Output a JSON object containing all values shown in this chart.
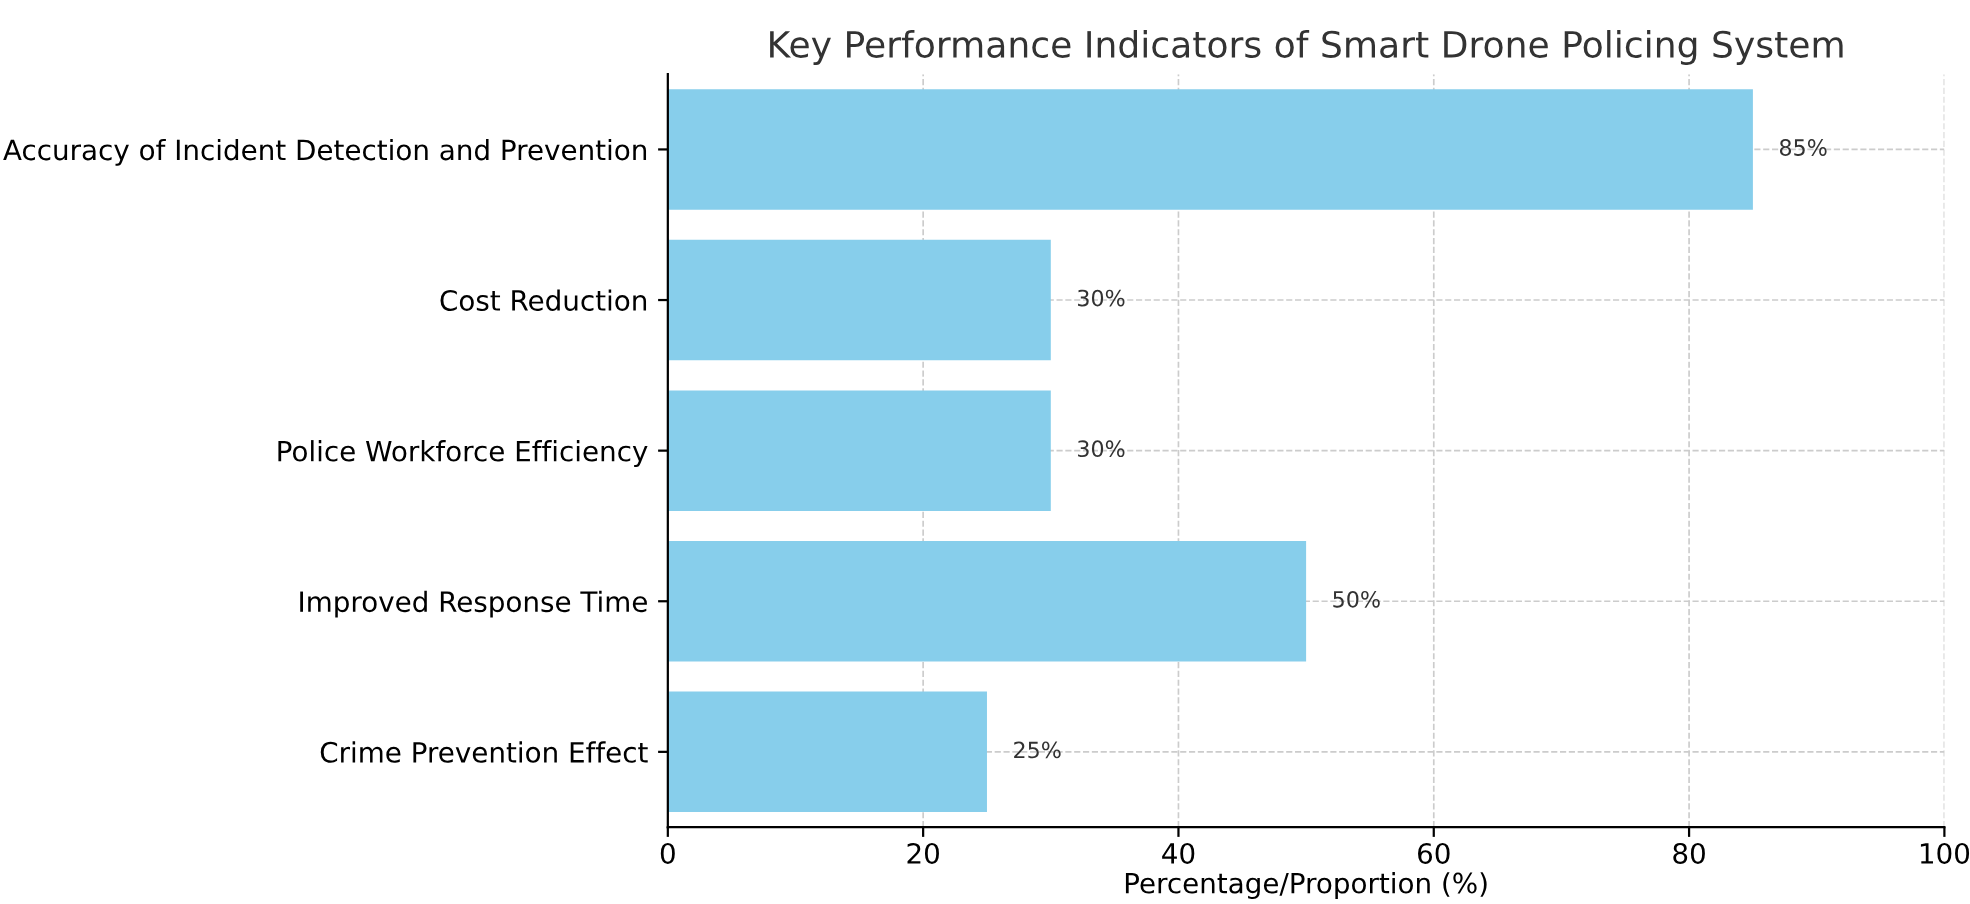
{
  "chart_data": {
    "type": "bar",
    "orientation": "horizontal",
    "title": "Key Performance Indicators of Smart Drone Policing System",
    "xlabel": "Percentage/Proportion (%)",
    "categories": [
      "Accuracy of Incident Detection and Prevention",
      "Cost Reduction",
      "Police Workforce Efficiency",
      "Improved Response Time",
      "Crime Prevention Effect"
    ],
    "values": [
      85,
      30,
      30,
      50,
      25
    ],
    "value_labels": [
      "85%",
      "30%",
      "30%",
      "50%",
      "25%"
    ],
    "color": "#87ceeb",
    "xlim": [
      0,
      100
    ],
    "xticks": [
      0,
      20,
      40,
      60,
      80,
      100
    ],
    "grid": true,
    "legend": false
  }
}
